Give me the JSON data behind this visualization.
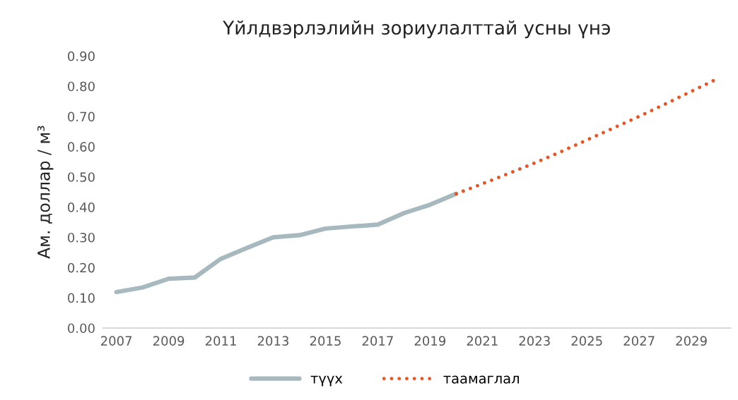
{
  "chart_data": {
    "type": "line",
    "title": "Үйлдвэрлэлийн зориулалттай усны үнэ",
    "ylabel": "Ам. доллар / м³",
    "categories": [
      "2007",
      null,
      "2009",
      null,
      "2011",
      null,
      "2013",
      null,
      "2015",
      null,
      "2017",
      null,
      "2019",
      null,
      "2021",
      null,
      "2023",
      null,
      "2025",
      null,
      "2027",
      null,
      "2029",
      null
    ],
    "series": [
      {
        "name": "түүх",
        "color": "#a7b9be",
        "line_style": "solid",
        "values": [
          0.119,
          0.134,
          0.163,
          0.167,
          0.229,
          0.265,
          0.3,
          0.307,
          0.329,
          0.336,
          0.342,
          0.38,
          0.408,
          0.444,
          null,
          null,
          null,
          null,
          null,
          null,
          null,
          null,
          null,
          null
        ]
      },
      {
        "name": "таамаглал",
        "color": "#e0592a",
        "line_style": "dotted",
        "values": [
          null,
          null,
          null,
          null,
          null,
          null,
          null,
          null,
          null,
          null,
          null,
          null,
          null,
          0.444,
          0.477,
          0.511,
          0.546,
          0.583,
          0.622,
          0.661,
          0.7,
          0.741,
          0.783,
          0.825
        ]
      }
    ],
    "ylim": [
      0,
      0.9
    ],
    "yticks": [
      {
        "value": 0,
        "label": "0.00"
      },
      {
        "value": 0.1,
        "label": "0.10"
      },
      {
        "value": 0.2,
        "label": "0.20"
      },
      {
        "value": 0.3,
        "label": "0.30"
      },
      {
        "value": 0.4,
        "label": "0.40"
      },
      {
        "value": 0.5,
        "label": "0.50"
      },
      {
        "value": 0.6,
        "label": "0.60"
      },
      {
        "value": 0.7,
        "label": "0.70"
      },
      {
        "value": 0.8,
        "label": "0.80"
      },
      {
        "value": 0.9,
        "label": "0.90"
      }
    ],
    "grid": false,
    "legend": "bottom",
    "marker": "none"
  }
}
